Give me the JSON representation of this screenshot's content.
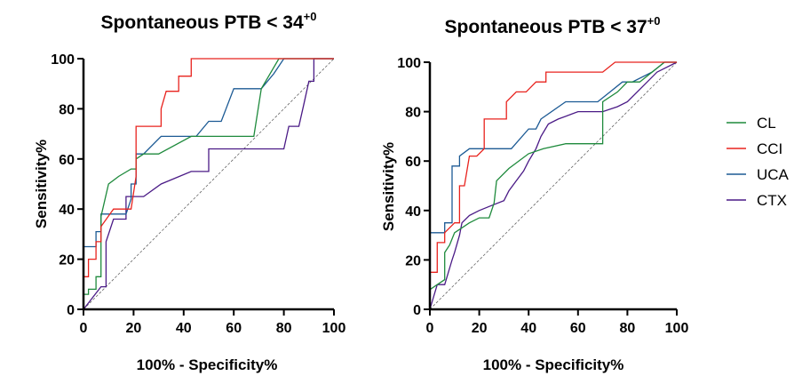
{
  "colors": {
    "CL": "#1e8a3c",
    "CCI": "#e8231e",
    "UCA": "#1c5a94",
    "CTX": "#4a1a86"
  },
  "legend": [
    {
      "key": "CL",
      "label": "CL"
    },
    {
      "key": "CCI",
      "label": "CCI"
    },
    {
      "key": "UCA",
      "label": "UCA"
    },
    {
      "key": "CTX",
      "label": "CTX"
    }
  ],
  "chart_data": [
    {
      "type": "line",
      "title_main": "Spontaneous PTB < 34",
      "title_sup": "+0",
      "xlabel": "100% - Specificity%",
      "ylabel": "Sensitivity%",
      "xlim": [
        0,
        100
      ],
      "ylim": [
        0,
        100
      ],
      "xticks": [
        "0",
        "20",
        "40",
        "60",
        "80",
        "100"
      ],
      "yticks": [
        "0",
        "20",
        "40",
        "60",
        "80",
        "100"
      ],
      "reference_line": "diagonal",
      "series": [
        {
          "name": "CL",
          "x": [
            0,
            0,
            2,
            2,
            5,
            5,
            7,
            7,
            10,
            14,
            19,
            21,
            21,
            24,
            28,
            30,
            43,
            68,
            71,
            78,
            80,
            100
          ],
          "y": [
            0,
            6,
            6,
            8,
            8,
            13,
            13,
            37,
            50,
            53,
            56,
            56,
            60,
            62,
            62,
            62,
            69,
            69,
            88,
            100,
            100,
            100
          ]
        },
        {
          "name": "CCI",
          "x": [
            0,
            0,
            2,
            2,
            5,
            5,
            7,
            7,
            12,
            14,
            19,
            21,
            21,
            26,
            31,
            31,
            33,
            38,
            38,
            43,
            43,
            52,
            100
          ],
          "y": [
            0,
            13,
            13,
            20,
            20,
            27,
            27,
            33,
            40,
            40,
            40,
            53,
            73,
            73,
            73,
            80,
            87,
            87,
            93,
            93,
            100,
            100,
            100
          ]
        },
        {
          "name": "UCA",
          "x": [
            0,
            0,
            2,
            5,
            5,
            7,
            7,
            10,
            17,
            19,
            19,
            21,
            21,
            24,
            31,
            33,
            45,
            50,
            55,
            60,
            71,
            76,
            80,
            100
          ],
          "y": [
            0,
            25,
            25,
            25,
            31,
            31,
            38,
            38,
            38,
            44,
            50,
            50,
            62,
            62,
            69,
            69,
            69,
            75,
            75,
            88,
            88,
            94,
            100,
            100
          ]
        },
        {
          "name": "CTX",
          "x": [
            0,
            7,
            9,
            9,
            12,
            14,
            17,
            17,
            21,
            24,
            31,
            43,
            50,
            50,
            57,
            64,
            80,
            82,
            86,
            88,
            88,
            90,
            92,
            92,
            95,
            100
          ],
          "y": [
            0,
            9,
            9,
            27,
            36,
            36,
            36,
            45,
            45,
            45,
            50,
            55,
            55,
            64,
            64,
            64,
            64,
            73,
            73,
            82,
            82,
            91,
            91,
            100,
            100,
            100
          ]
        }
      ]
    },
    {
      "type": "line",
      "title_main": "Spontaneous PTB < 37",
      "title_sup": "+0",
      "xlabel": "100% - Specificity%",
      "ylabel": "Sensitivity%",
      "xlim": [
        0,
        100
      ],
      "ylim": [
        0,
        100
      ],
      "xticks": [
        "0",
        "20",
        "40",
        "60",
        "80",
        "100"
      ],
      "yticks": [
        "0",
        "20",
        "40",
        "60",
        "80",
        "100"
      ],
      "reference_line": "diagonal",
      "series": [
        {
          "name": "CL",
          "x": [
            0,
            0,
            3,
            6,
            6,
            8,
            10,
            13,
            16,
            20,
            24,
            26,
            27,
            32,
            40,
            46,
            55,
            63,
            70,
            70,
            76,
            80,
            85,
            90,
            95,
            100
          ],
          "y": [
            0,
            8,
            10,
            12,
            23,
            26,
            31,
            33,
            35,
            37,
            37,
            43,
            52,
            57,
            63,
            65,
            67,
            67,
            67,
            84,
            88,
            92,
            92,
            96,
            100,
            100
          ]
        },
        {
          "name": "CCI",
          "x": [
            0,
            0,
            3,
            3,
            6,
            6,
            10,
            12,
            12,
            14,
            16,
            19,
            22,
            22,
            28,
            31,
            31,
            35,
            39,
            43,
            47,
            47,
            55,
            70,
            75,
            100
          ],
          "y": [
            0,
            15,
            15,
            27,
            27,
            31,
            35,
            35,
            50,
            50,
            62,
            62,
            65,
            77,
            77,
            77,
            84,
            88,
            88,
            92,
            92,
            96,
            96,
            96,
            100,
            100
          ]
        },
        {
          "name": "UCA",
          "x": [
            0,
            0,
            6,
            6,
            9,
            9,
            12,
            12,
            16,
            20,
            33,
            40,
            43,
            45,
            55,
            65,
            68,
            73,
            78,
            82,
            90,
            95,
            100
          ],
          "y": [
            0,
            31,
            31,
            35,
            35,
            58,
            58,
            62,
            65,
            65,
            65,
            73,
            73,
            77,
            84,
            84,
            84,
            88,
            92,
            92,
            96,
            100,
            100
          ]
        },
        {
          "name": "CTX",
          "x": [
            0,
            3,
            6,
            9,
            10,
            12,
            13,
            16,
            20,
            25,
            30,
            32,
            35,
            38,
            40,
            43,
            45,
            48,
            52,
            60,
            70,
            76,
            80,
            86,
            92,
            100
          ],
          "y": [
            0,
            10,
            10,
            20,
            23,
            30,
            35,
            38,
            40,
            42,
            44,
            48,
            52,
            56,
            60,
            65,
            70,
            75,
            77,
            80,
            80,
            82,
            84,
            90,
            96,
            100
          ]
        }
      ]
    }
  ]
}
